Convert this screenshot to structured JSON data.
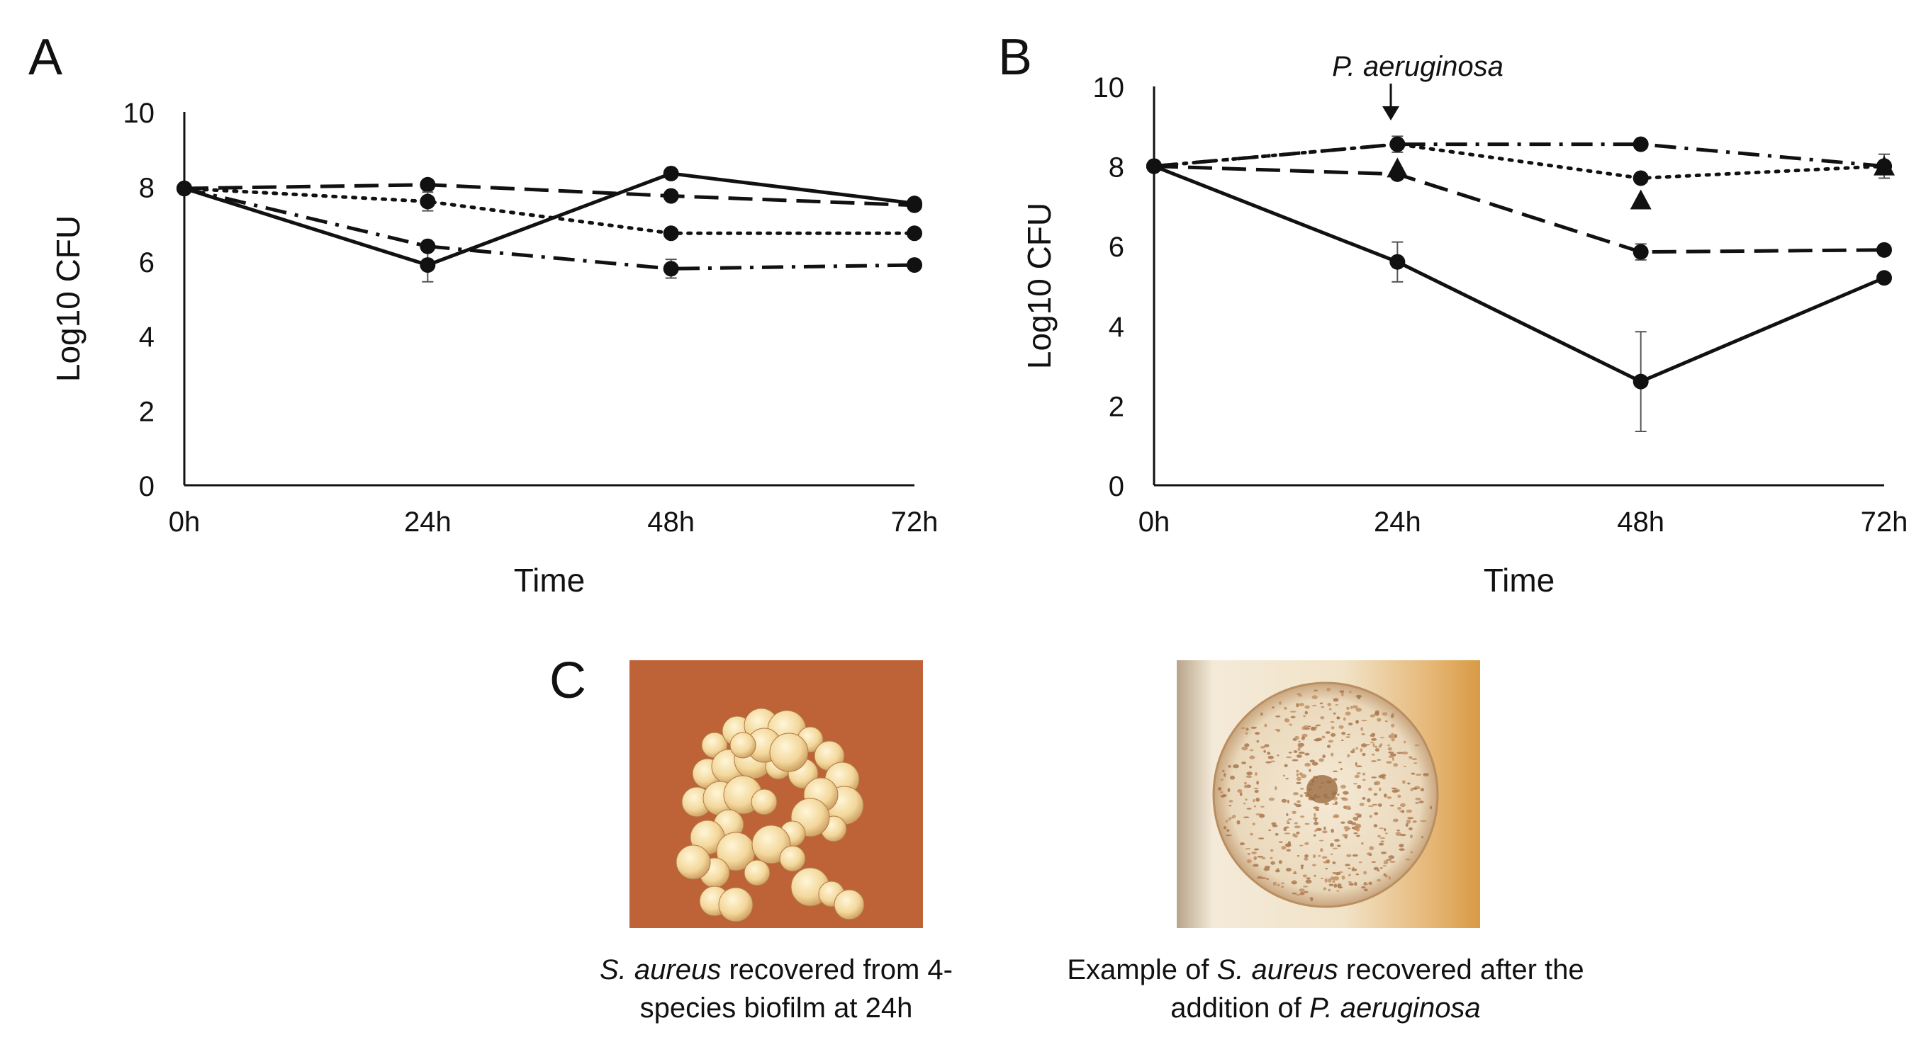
{
  "panels": {
    "a": {
      "letter": "A"
    },
    "b": {
      "letter": "B",
      "annotation": "P. aeruginosa"
    },
    "c": {
      "letter": "C"
    }
  },
  "chart_data": [
    {
      "id": "A",
      "type": "line",
      "title": "",
      "xlabel": "Time",
      "ylabel": "Log10 CFU",
      "categories": [
        "0h",
        "24h",
        "48h",
        "72h"
      ],
      "ylim": [
        0,
        10
      ],
      "yticks": [
        0,
        2,
        4,
        6,
        8,
        10
      ],
      "series": [
        {
          "name": "solid",
          "dash": "solid",
          "marker": "circle",
          "values": [
            7.95,
            5.9,
            8.35,
            7.55
          ],
          "error": [
            0,
            0.45,
            0,
            0
          ]
        },
        {
          "name": "dashed",
          "dash": "dashed",
          "marker": "circle",
          "values": [
            7.95,
            8.05,
            7.75,
            7.5
          ],
          "error": [
            0,
            0,
            0,
            0
          ]
        },
        {
          "name": "dotted",
          "dash": "dotted",
          "marker": "circle",
          "values": [
            7.95,
            7.6,
            6.75,
            6.75
          ],
          "error": [
            0,
            0.25,
            0,
            0
          ]
        },
        {
          "name": "dash-dot",
          "dash": "dashdot",
          "marker": "circle",
          "values": [
            7.95,
            6.4,
            5.8,
            5.9
          ],
          "error": [
            0,
            0,
            0.25,
            0
          ]
        }
      ]
    },
    {
      "id": "B",
      "type": "line",
      "title": "",
      "xlabel": "Time",
      "ylabel": "Log10 CFU",
      "categories": [
        "0h",
        "24h",
        "48h",
        "72h"
      ],
      "ylim": [
        0,
        10
      ],
      "yticks": [
        0,
        2,
        4,
        6,
        8,
        10
      ],
      "series": [
        {
          "name": "solid",
          "dash": "solid",
          "marker": "circle",
          "values": [
            8.0,
            5.6,
            2.6,
            5.2
          ],
          "error": [
            0,
            0.5,
            1.25,
            0
          ]
        },
        {
          "name": "dashed",
          "dash": "dashed",
          "marker": "circle",
          "values": [
            8.0,
            7.8,
            5.85,
            5.9
          ],
          "error": [
            0,
            0,
            0.2,
            0
          ]
        },
        {
          "name": "dotted",
          "dash": "dotted",
          "marker": "circle",
          "values": [
            8.0,
            8.55,
            7.7,
            8.0
          ],
          "error": [
            0,
            0.2,
            0,
            0
          ]
        },
        {
          "name": "dash-dot",
          "dash": "dashdot",
          "marker": "circle",
          "values": [
            8.0,
            8.55,
            8.55,
            8.0
          ],
          "error": [
            0,
            0,
            0,
            0.3
          ]
        },
        {
          "name": "triangle",
          "dash": "none",
          "marker": "triangle",
          "values": [
            null,
            7.95,
            7.15,
            8.0
          ],
          "error": [
            0,
            0,
            0,
            0
          ]
        }
      ]
    }
  ],
  "images": {
    "left_caption": {
      "italic": "S. aureus",
      "line1": " recovered from 4-",
      "line2": "species biofilm at 24h"
    },
    "right_caption": {
      "line1a": "Example of ",
      "italic1": "S. aureus",
      "line1b": " recovered after the",
      "line2a": "addition of ",
      "italic2": "P. aeruginosa"
    }
  },
  "colors": {
    "ink": "#111111",
    "agar_left": "#c86a3c",
    "agar_right": "#e6c38e"
  }
}
